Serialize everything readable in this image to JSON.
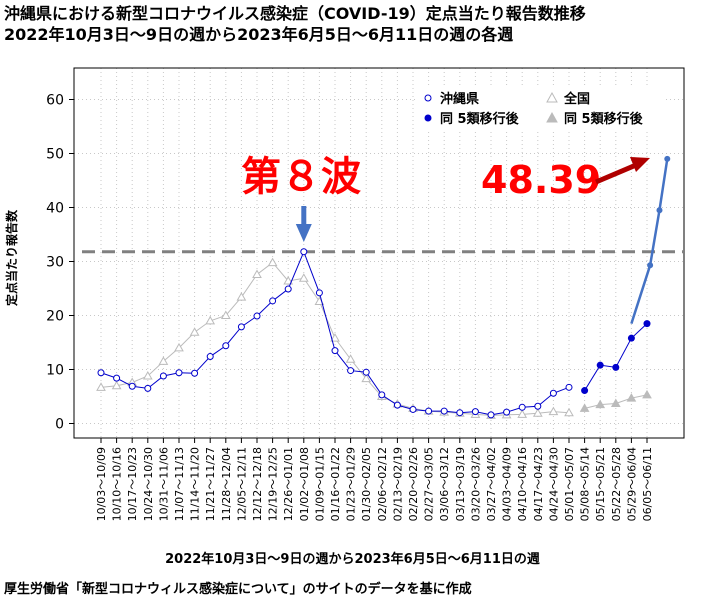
{
  "chart_data": {
    "type": "line",
    "title": "沖縄県における新型コロナウイルス感染症（COVID-19）定点当たり報告数推移",
    "subtitle": "2022年10月3日～9日の週から2023年6月5日～6月11日の週の各週",
    "xlabel": "2022年10月3日～9日の週から2023年6月5日～6月11日の週",
    "ylabel": "定点当たり報告数",
    "ylim": [
      0,
      65
    ],
    "yticks": [
      0,
      10,
      20,
      30,
      40,
      50,
      60
    ],
    "grid": true,
    "legend_position": "top-right",
    "categories": [
      "10/03～10/09",
      "10/10～10/16",
      "10/17～10/23",
      "10/24～10/30",
      "10/31～11/06",
      "11/07～11/13",
      "11/14～11/20",
      "11/21～11/27",
      "11/28～12/04",
      "12/05～12/11",
      "12/12～12/18",
      "12/19～12/25",
      "12/26～01/01",
      "01/02～01/08",
      "01/09～01/15",
      "01/16～01/22",
      "01/23～01/29",
      "01/30～02/05",
      "02/06～02/12",
      "02/13～02/19",
      "02/20～02/26",
      "02/27～03/05",
      "03/06～03/12",
      "03/13～03/19",
      "03/20～03/26",
      "03/27～04/02",
      "04/03～04/09",
      "04/10～04/16",
      "04/17～04/23",
      "04/24～04/30",
      "05/01～05/07",
      "05/08～05/14",
      "05/15～05/21",
      "05/22～05/28",
      "05/29～06/04",
      "06/05～06/11"
    ],
    "series": [
      {
        "name": "沖縄県",
        "color": "#0000cc",
        "marker": "open-circle",
        "values": [
          9.4,
          8.4,
          6.9,
          6.5,
          8.8,
          9.4,
          9.3,
          12.4,
          14.4,
          17.9,
          19.9,
          22.7,
          24.9,
          31.8,
          24.2,
          13.5,
          9.8,
          9.5,
          5.3,
          3.4,
          2.6,
          2.3,
          2.3,
          2.0,
          2.2,
          1.6,
          2.1,
          3.0,
          3.2,
          5.6,
          6.7,
          null,
          null,
          null,
          null,
          null
        ]
      },
      {
        "name": "全国",
        "color": "#bbbbbb",
        "marker": "open-triangle",
        "values": [
          6.7,
          7.0,
          7.6,
          8.8,
          11.5,
          14.0,
          16.9,
          19.0,
          20.0,
          23.4,
          27.6,
          29.8,
          26.4,
          26.9,
          22.6,
          15.8,
          11.9,
          8.3,
          5.0,
          3.6,
          2.8,
          2.3,
          2.1,
          1.9,
          1.7,
          1.5,
          1.6,
          1.7,
          1.9,
          2.2,
          2.0,
          null,
          null,
          null,
          null,
          null
        ]
      },
      {
        "name": "同 5類移行後",
        "color": "#0000cc",
        "marker": "filled-circle",
        "values": [
          null,
          null,
          null,
          null,
          null,
          null,
          null,
          null,
          null,
          null,
          null,
          null,
          null,
          null,
          null,
          null,
          null,
          null,
          null,
          null,
          null,
          null,
          null,
          null,
          null,
          null,
          null,
          null,
          null,
          null,
          null,
          6.1,
          10.8,
          10.4,
          15.8,
          18.5
        ]
      },
      {
        "name": "同 5類移行後",
        "color": "#bbbbbb",
        "marker": "filled-triangle",
        "values": [
          null,
          null,
          null,
          null,
          null,
          null,
          null,
          null,
          null,
          null,
          null,
          null,
          null,
          null,
          null,
          null,
          null,
          null,
          null,
          null,
          null,
          null,
          null,
          null,
          null,
          null,
          null,
          null,
          null,
          null,
          null,
          2.8,
          3.5,
          3.7,
          4.7,
          5.3
        ]
      }
    ],
    "forecast_line": {
      "color": "#4472c4",
      "points": [
        [
          35,
          18.5
        ],
        [
          36.2,
          29.3
        ],
        [
          36.8,
          39.5
        ],
        [
          37.3,
          49.0
        ]
      ]
    },
    "reference_line": {
      "y": 31.8,
      "color": "#808080"
    },
    "annotations": [
      {
        "id": "wave8",
        "text": "第８波",
        "color": "#ff0000"
      },
      {
        "id": "value",
        "text": "48.39",
        "color": "#ff0000"
      }
    ]
  },
  "source_note": "厚生労働省「新型コロナウィルス感染症について」のサイトのデータを基に作成"
}
